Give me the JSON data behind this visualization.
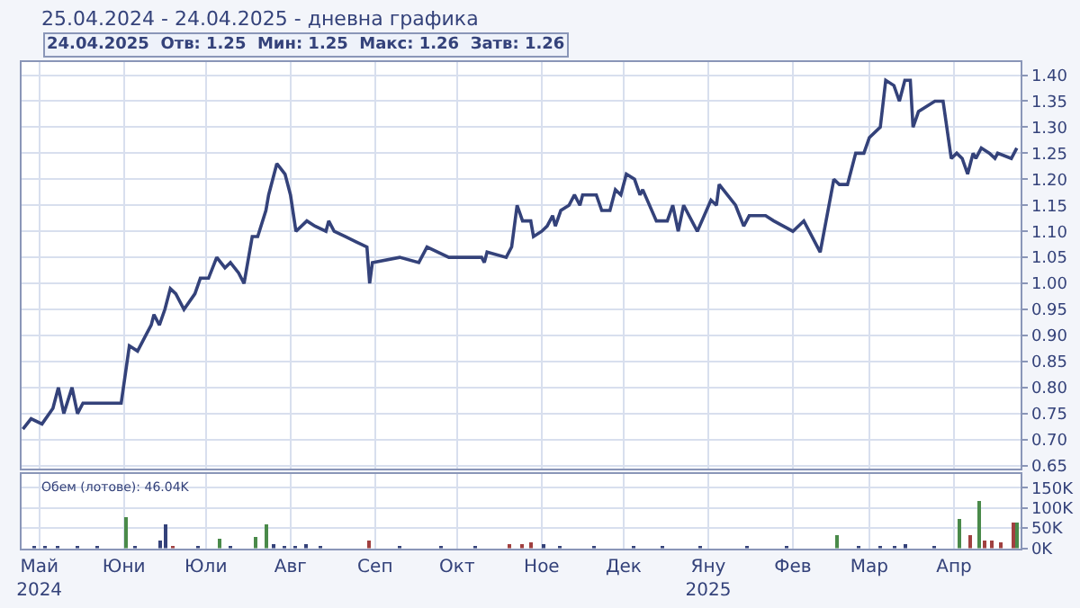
{
  "chart_data": [
    {
      "type": "line",
      "title": "25.04.2024 - 24.04.2025 - дневна графика",
      "subtitle": "24.04.2025  Отв: 1.25  Мин: 1.25  Макс: 1.26  Затв: 1.26",
      "color": "#34427a",
      "marker": "none",
      "line_style": "solid",
      "grid": true,
      "tick_labels": "y",
      "x": [
        "2024-04-25",
        "2024-04-28",
        "2024-05-02",
        "2024-05-06",
        "2024-05-08",
        "2024-05-10",
        "2024-05-13",
        "2024-05-15",
        "2024-05-17",
        "2024-05-20",
        "2024-05-23",
        "2024-05-31",
        "2024-06-03",
        "2024-06-06",
        "2024-06-09",
        "2024-06-11",
        "2024-06-12",
        "2024-06-14",
        "2024-06-16",
        "2024-06-18",
        "2024-06-20",
        "2024-06-23",
        "2024-06-27",
        "2024-06-29",
        "2024-07-02",
        "2024-07-05",
        "2024-07-08",
        "2024-07-10",
        "2024-07-13",
        "2024-07-15",
        "2024-07-18",
        "2024-07-20",
        "2024-07-23",
        "2024-07-24",
        "2024-07-27",
        "2024-07-30",
        "2024-08-01",
        "2024-08-03",
        "2024-08-07",
        "2024-08-10",
        "2024-08-14",
        "2024-08-15",
        "2024-08-17",
        "2024-08-21",
        "2024-08-25",
        "2024-08-29",
        "2024-08-30",
        "2024-08-31",
        "2024-09-10",
        "2024-09-17",
        "2024-09-20",
        "2024-09-28",
        "2024-10-10",
        "2024-10-11",
        "2024-10-12",
        "2024-10-19",
        "2024-10-21",
        "2024-10-23",
        "2024-10-25",
        "2024-10-28",
        "2024-10-29",
        "2024-11-01",
        "2024-11-03",
        "2024-11-05",
        "2024-11-06",
        "2024-11-08",
        "2024-11-11",
        "2024-11-13",
        "2024-11-15",
        "2024-11-16",
        "2024-11-21",
        "2024-11-23",
        "2024-11-26",
        "2024-11-28",
        "2024-11-30",
        "2024-12-02",
        "2024-12-05",
        "2024-12-07",
        "2024-12-08",
        "2024-12-13",
        "2024-12-17",
        "2024-12-19",
        "2024-12-21",
        "2024-12-23",
        "2024-12-28",
        "2025-01-02",
        "2025-01-04",
        "2025-01-05",
        "2025-01-11",
        "2025-01-14",
        "2025-01-16",
        "2025-01-22",
        "2025-01-25",
        "2025-02-01",
        "2025-02-05",
        "2025-02-11",
        "2025-02-16",
        "2025-02-18",
        "2025-02-21",
        "2025-02-24",
        "2025-02-27",
        "2025-03-01",
        "2025-03-05",
        "2025-03-07",
        "2025-03-10",
        "2025-03-12",
        "2025-03-14",
        "2025-03-16",
        "2025-03-17",
        "2025-03-19",
        "2025-03-22",
        "2025-03-25",
        "2025-03-28",
        "2025-03-31",
        "2025-04-02",
        "2025-04-04",
        "2025-04-06",
        "2025-04-08",
        "2025-04-09",
        "2025-04-11",
        "2025-04-14",
        "2025-04-16",
        "2025-04-17",
        "2025-04-22",
        "2025-04-24"
      ],
      "values": [
        0.72,
        0.74,
        0.73,
        0.76,
        0.8,
        0.75,
        0.8,
        0.75,
        0.77,
        0.77,
        0.77,
        0.77,
        0.88,
        0.87,
        0.9,
        0.92,
        0.94,
        0.92,
        0.95,
        0.99,
        0.98,
        0.95,
        0.98,
        1.01,
        1.01,
        1.05,
        1.03,
        1.04,
        1.02,
        1.0,
        1.09,
        1.09,
        1.14,
        1.17,
        1.23,
        1.21,
        1.17,
        1.1,
        1.12,
        1.11,
        1.1,
        1.12,
        1.1,
        1.09,
        1.08,
        1.07,
        1.0,
        1.04,
        1.05,
        1.04,
        1.07,
        1.05,
        1.05,
        1.04,
        1.06,
        1.05,
        1.07,
        1.15,
        1.12,
        1.12,
        1.09,
        1.1,
        1.11,
        1.13,
        1.11,
        1.14,
        1.15,
        1.17,
        1.15,
        1.17,
        1.17,
        1.14,
        1.14,
        1.18,
        1.17,
        1.21,
        1.2,
        1.17,
        1.18,
        1.12,
        1.12,
        1.15,
        1.1,
        1.15,
        1.1,
        1.16,
        1.15,
        1.19,
        1.15,
        1.11,
        1.13,
        1.13,
        1.12,
        1.1,
        1.12,
        1.06,
        1.2,
        1.19,
        1.19,
        1.25,
        1.25,
        1.28,
        1.3,
        1.39,
        1.38,
        1.35,
        1.39,
        1.39,
        1.3,
        1.33,
        1.34,
        1.35,
        1.35,
        1.24,
        1.25,
        1.24,
        1.21,
        1.25,
        1.24,
        1.26,
        1.25,
        1.24,
        1.25,
        1.24,
        1.26
      ],
      "xlim": [
        "2024-04-24T12:00",
        "2025-04-25T12:00"
      ],
      "xticks": [
        {
          "value": "2024-05-01",
          "label": null
        },
        {
          "value": "2024-06-01",
          "label": null
        },
        {
          "value": "2024-07-01",
          "label": null
        },
        {
          "value": "2024-08-01",
          "label": null
        },
        {
          "value": "2024-09-01",
          "label": null
        },
        {
          "value": "2024-10-01",
          "label": null
        },
        {
          "value": "2024-11-01",
          "label": null
        },
        {
          "value": "2024-12-01",
          "label": null
        },
        {
          "value": "2025-01-01",
          "label": null
        },
        {
          "value": "2025-02-01",
          "label": null
        },
        {
          "value": "2025-03-01",
          "label": null
        },
        {
          "value": "2025-04-01",
          "label": null
        }
      ],
      "ylim": [
        0.645,
        1.425
      ],
      "yticks": [
        0.65,
        {
          "value": 0.7,
          "label": "0.70"
        },
        0.75,
        {
          "value": 0.8,
          "label": "0.80"
        },
        0.85,
        {
          "value": 0.9,
          "label": "0.90"
        },
        0.95,
        {
          "value": 1.0,
          "label": "1.00"
        },
        1.05,
        {
          "value": 1.1,
          "label": "1.10"
        },
        1.15,
        {
          "value": 1.2,
          "label": "1.20"
        },
        1.25,
        {
          "value": 1.3,
          "label": "1.30"
        },
        1.35,
        {
          "value": 1.4,
          "label": "1.40"
        }
      ]
    },
    {
      "type": "bar",
      "annotations": [
        "Обем (лотове): 46.04K"
      ],
      "grid": true,
      "x": [
        "2024-04-29",
        "2024-05-03",
        "2024-05-08",
        "2024-05-15",
        "2024-05-22",
        "2024-06-02",
        "2024-06-05",
        "2024-06-14",
        "2024-06-16",
        "2024-06-19",
        "2024-06-28",
        "2024-07-06",
        "2024-07-10",
        "2024-07-19",
        "2024-07-23",
        "2024-07-26",
        "2024-07-30",
        "2024-08-03",
        "2024-08-07",
        "2024-08-12",
        "2024-08-30",
        "2024-09-10",
        "2024-09-25",
        "2024-10-08",
        "2024-10-20",
        "2024-10-25",
        "2024-10-28",
        "2024-11-02",
        "2024-11-08",
        "2024-11-20",
        "2024-12-05",
        "2024-12-15",
        "2024-12-29",
        "2025-01-15",
        "2025-01-30",
        "2025-02-17",
        "2025-02-25",
        "2025-03-05",
        "2025-03-10",
        "2025-03-14",
        "2025-03-25",
        "2025-04-03",
        "2025-04-07",
        "2025-04-10",
        "2025-04-12",
        "2025-04-15",
        "2025-04-18",
        "2025-04-23",
        "2025-04-24"
      ],
      "values": [
        5000,
        6000,
        4000,
        3000,
        5000,
        80000,
        8000,
        20000,
        62000,
        8000,
        6000,
        25000,
        8000,
        28000,
        58000,
        10000,
        8000,
        8000,
        9000,
        8000,
        20000,
        4000,
        3000,
        4000,
        10000,
        12000,
        14000,
        10000,
        8000,
        8000,
        5000,
        4000,
        6000,
        3000,
        3000,
        35000,
        8000,
        6000,
        8000,
        10000,
        6000,
        75000,
        33000,
        120000,
        20000,
        18000,
        15000,
        63000,
        63000
      ],
      "colors": [
        "#34427a",
        "#34427a",
        "#34427a",
        "#34427a",
        "#34427a",
        "#4a8a4a",
        "#34427a",
        "#34427a",
        "#34427a",
        "#a04040",
        "#34427a",
        "#4a8a4a",
        "#34427a",
        "#4a8a4a",
        "#4a8a4a",
        "#34427a",
        "#34427a",
        "#34427a",
        "#34427a",
        "#34427a",
        "#a04040",
        "#34427a",
        "#34427a",
        "#34427a",
        "#a04040",
        "#a04040",
        "#a04040",
        "#34427a",
        "#34427a",
        "#34427a",
        "#34427a",
        "#34427a",
        "#34427a",
        "#34427a",
        "#34427a",
        "#4a8a4a",
        "#34427a",
        "#34427a",
        "#34427a",
        "#34427a",
        "#34427a",
        "#4a8a4a",
        "#a04040",
        "#4a8a4a",
        "#a04040",
        "#a04040",
        "#a04040",
        "#a04040",
        "#4a8a4a"
      ],
      "xlim": [
        "2024-04-24T12:00",
        "2025-04-25T12:00"
      ],
      "xticks": [
        {
          "value": "2024-05-01",
          "label": "Май\n2024"
        },
        {
          "value": "2024-06-01",
          "label": "Юни"
        },
        {
          "value": "2024-07-01",
          "label": "Юли"
        },
        {
          "value": "2024-08-01",
          "label": "Авг"
        },
        {
          "value": "2024-09-01",
          "label": "Сеп"
        },
        {
          "value": "2024-10-01",
          "label": "Окт"
        },
        {
          "value": "2024-11-01",
          "label": "Ное"
        },
        {
          "value": "2024-12-01",
          "label": "Дек"
        },
        {
          "value": "2025-01-01",
          "label": "Яну\n2025"
        },
        {
          "value": "2025-02-01",
          "label": "Фев"
        },
        {
          "value": "2025-03-01",
          "label": "Мар"
        },
        {
          "value": "2025-04-01",
          "label": "Апр"
        }
      ],
      "ylim": [
        0,
        185000
      ],
      "yticks": [
        {
          "value": 0,
          "label": "0K"
        },
        {
          "value": 50000,
          "label": "50K"
        },
        {
          "value": 100000,
          "label": "100K"
        },
        {
          "value": 150000,
          "label": "150K"
        }
      ]
    }
  ]
}
